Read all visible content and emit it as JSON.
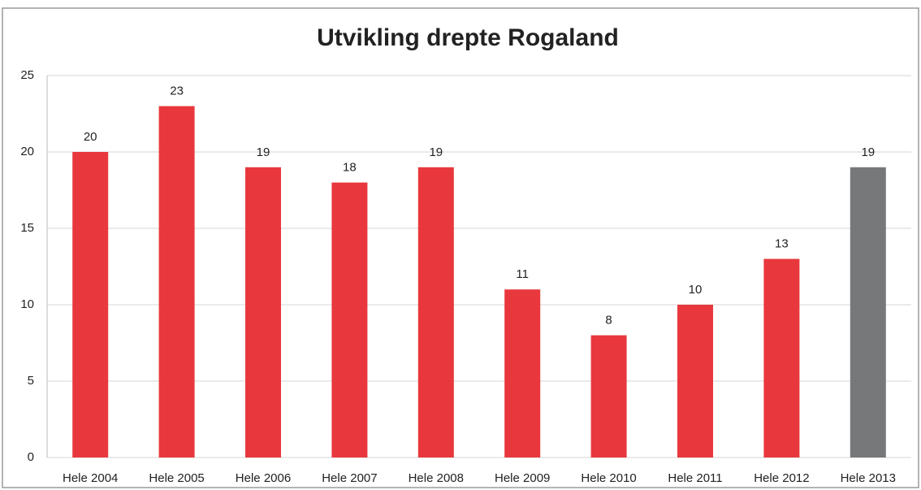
{
  "chart_data": {
    "type": "bar",
    "title": "Utvikling drepte Rogaland",
    "categories": [
      "Hele 2004",
      "Hele 2005",
      "Hele 2006",
      "Hele 2007",
      "Hele 2008",
      "Hele 2009",
      "Hele 2010",
      "Hele 2011",
      "Hele 2012",
      "Hele 2013"
    ],
    "values": [
      20,
      23,
      19,
      18,
      19,
      11,
      8,
      10,
      13,
      19
    ],
    "colors": [
      "#e8383d",
      "#e8383d",
      "#e8383d",
      "#e8383d",
      "#e8383d",
      "#e8383d",
      "#e8383d",
      "#e8383d",
      "#e8383d",
      "#76787a"
    ],
    "ylim": [
      0,
      25
    ],
    "yticks": [
      0,
      5,
      10,
      15,
      20,
      25
    ],
    "grid": true
  }
}
